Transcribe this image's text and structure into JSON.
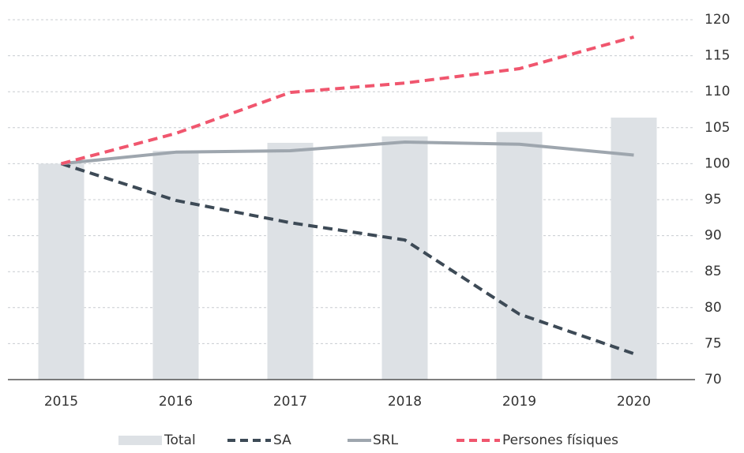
{
  "chart_data": {
    "type": "bar-line",
    "categories": [
      "2015",
      "2016",
      "2017",
      "2018",
      "2019",
      "2020"
    ],
    "series": [
      {
        "name": "Total",
        "type": "bar",
        "color": "#dde1e5",
        "values": [
          100,
          101.8,
          102.9,
          103.8,
          104.4,
          106.4
        ]
      },
      {
        "name": "SA",
        "type": "line",
        "dash": true,
        "color": "#3d4a56",
        "values": [
          100,
          94.9,
          91.8,
          89.4,
          79.1,
          73.6
        ]
      },
      {
        "name": "SRL",
        "type": "line",
        "dash": false,
        "color": "#9ea6ae",
        "values": [
          100,
          101.6,
          101.8,
          103.0,
          102.7,
          101.2
        ]
      },
      {
        "name": "Persones físiques",
        "type": "line",
        "dash": true,
        "color": "#f0566e",
        "values": [
          100,
          104.2,
          109.9,
          111.2,
          113.2,
          117.6
        ]
      }
    ],
    "ylim": [
      70,
      120
    ],
    "yticks": [
      70,
      75,
      80,
      85,
      90,
      95,
      100,
      105,
      110,
      115,
      120
    ],
    "grid": true,
    "legend": "bottom"
  }
}
